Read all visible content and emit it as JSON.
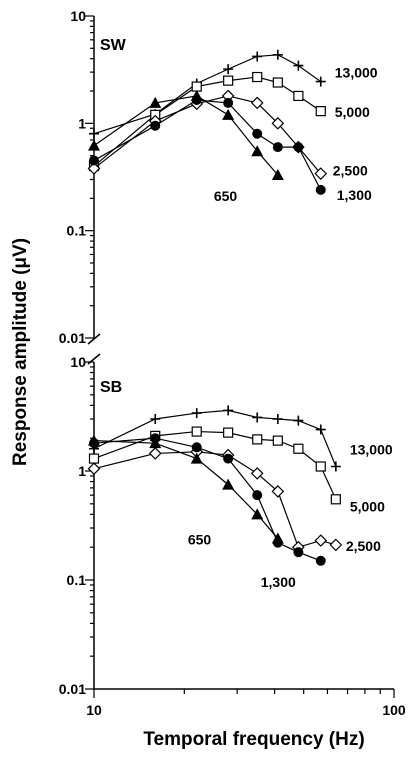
{
  "chart_data": {
    "type": "line",
    "xlabel": "Temporal frequency (Hz)",
    "ylabel": "Response amplitude (μV)",
    "x_scale": "log",
    "y_scale": "log",
    "xlim": [
      10,
      100
    ],
    "x_ticks": [
      "10",
      "100"
    ],
    "grid": false,
    "panels": [
      {
        "label": "SW",
        "ylim": [
          0.01,
          10
        ],
        "y_ticks": [
          "10",
          "1",
          "0.1",
          "0.01"
        ],
        "series": [
          {
            "name": "13,000",
            "marker": "plus",
            "x": [
              10,
              16,
              22,
              28,
              35,
              41,
              48,
              57
            ],
            "y": [
              0.8,
              1.22,
              2.35,
              3.2,
              4.2,
              4.35,
              3.45,
              2.45
            ]
          },
          {
            "name": "5,000",
            "marker": "square",
            "x": [
              10,
              16,
              22,
              28,
              35,
              41,
              48,
              57
            ],
            "y": [
              0.4,
              1.2,
              2.2,
              2.5,
              2.7,
              2.4,
              1.8,
              1.3
            ]
          },
          {
            "name": "2,500",
            "marker": "diamond",
            "x": [
              10,
              16,
              22,
              28,
              35,
              41,
              48,
              57
            ],
            "y": [
              0.38,
              1.05,
              1.52,
              1.8,
              1.55,
              1.0,
              0.6,
              0.34
            ]
          },
          {
            "name": "1,300",
            "marker": "circle",
            "x": [
              10,
              16,
              22,
              28,
              35,
              41,
              48,
              57
            ],
            "y": [
              0.45,
              0.95,
              1.65,
              1.55,
              0.8,
              0.6,
              0.6,
              0.24
            ]
          },
          {
            "name": "650",
            "marker": "triangle",
            "x": [
              10,
              16,
              22,
              28,
              35,
              41
            ],
            "y": [
              0.62,
              1.55,
              1.8,
              1.2,
              0.55,
              0.33
            ]
          }
        ]
      },
      {
        "label": "SB",
        "ylim": [
          0.01,
          10
        ],
        "y_ticks": [
          "10",
          "1",
          "0.1",
          "0.01"
        ],
        "series": [
          {
            "name": "13,000",
            "marker": "plus",
            "x": [
              10,
              16,
              22,
              28,
              35,
              41,
              48,
              57,
              64
            ],
            "y": [
              1.6,
              3.0,
              3.4,
              3.6,
              3.1,
              3.0,
              2.9,
              2.4,
              1.1
            ]
          },
          {
            "name": "5,000",
            "marker": "square",
            "x": [
              10,
              16,
              22,
              28,
              35,
              41,
              48,
              57,
              64
            ],
            "y": [
              1.3,
              2.1,
              2.3,
              2.25,
              1.95,
              1.9,
              1.6,
              1.1,
              0.55
            ]
          },
          {
            "name": "2,500",
            "marker": "diamond",
            "x": [
              10,
              16,
              22,
              28,
              35,
              41,
              48,
              57,
              64
            ],
            "y": [
              1.05,
              1.45,
              1.5,
              1.4,
              0.95,
              0.65,
              0.2,
              0.23,
              0.21
            ]
          },
          {
            "name": "1,300",
            "marker": "circle",
            "x": [
              10,
              16,
              22,
              28,
              35,
              41,
              48,
              57
            ],
            "y": [
              1.8,
              2.0,
              1.65,
              1.3,
              0.6,
              0.22,
              0.18,
              0.15
            ]
          },
          {
            "name": "650",
            "marker": "triangle",
            "x": [
              10,
              16,
              22,
              28,
              35,
              41
            ],
            "y": [
              1.9,
              1.8,
              1.3,
              0.75,
              0.4,
              0.24
            ]
          }
        ]
      }
    ]
  }
}
